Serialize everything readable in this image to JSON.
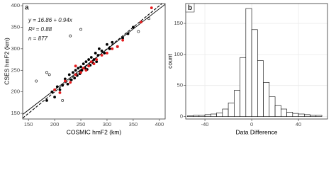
{
  "chart_data": [
    {
      "type": "scatter",
      "panel_label": "a",
      "x_label": "COSMIC hmF2 (km)",
      "y_label": "CSES hmF2 (km)",
      "annotations": [
        "y = 16.86 + 0.94x",
        "R² = 0.88",
        "n = 877"
      ],
      "fit": {
        "intercept": 16.86,
        "slope": 0.94
      },
      "xlim": [
        139,
        411
      ],
      "ylim": [
        137,
        405
      ],
      "xticks": [
        150,
        200,
        250,
        300,
        350,
        400
      ],
      "yticks": [
        150,
        200,
        250,
        300,
        350,
        400
      ],
      "grid": false,
      "series": [
        {
          "color": "#000000",
          "fill": "#000000",
          "x": [
            185,
            195,
            200,
            205,
            210,
            215,
            220,
            225,
            228,
            232,
            235,
            238,
            240,
            243,
            245,
            248,
            250,
            252,
            255,
            258,
            260,
            262,
            265,
            268,
            270,
            273,
            275,
            278,
            280,
            283,
            285,
            290,
            295,
            300,
            305,
            310,
            320,
            330,
            340,
            350
          ],
          "y": [
            180,
            200,
            188,
            212,
            205,
            215,
            230,
            218,
            240,
            228,
            245,
            232,
            250,
            238,
            255,
            242,
            258,
            250,
            265,
            255,
            270,
            252,
            275,
            262,
            280,
            268,
            275,
            290,
            270,
            285,
            300,
            295,
            290,
            310,
            300,
            315,
            305,
            325,
            335,
            350
          ]
        },
        {
          "color": "#e41a1c",
          "fill": "#e41a1c",
          "x": [
            200,
            210,
            220,
            230,
            240,
            250,
            255,
            260,
            265,
            270,
            275,
            280,
            290,
            300,
            310,
            320,
            330,
            365,
            385,
            240
          ],
          "y": [
            205,
            198,
            225,
            222,
            240,
            245,
            255,
            250,
            260,
            270,
            265,
            275,
            285,
            290,
            300,
            305,
            320,
            362,
            395,
            260
          ]
        },
        {
          "color": "#000000",
          "fill": "none",
          "x": [
            165,
            185,
            190,
            230,
            250,
            360,
            380,
            215
          ],
          "y": [
            225,
            245,
            240,
            330,
            345,
            340,
            370,
            180
          ]
        }
      ]
    },
    {
      "type": "histogram",
      "panel_label": "b",
      "x_label": "Data Difference",
      "y_label": "count",
      "bins": [
        -55,
        -50,
        -45,
        -40,
        -35,
        -30,
        -25,
        -20,
        -15,
        -10,
        -5,
        0,
        5,
        10,
        15,
        20,
        25,
        30,
        35,
        40,
        45,
        50,
        55,
        60
      ],
      "counts": [
        1,
        2,
        2,
        3,
        4,
        6,
        12,
        22,
        42,
        95,
        174,
        140,
        90,
        55,
        32,
        18,
        12,
        7,
        5,
        4,
        3,
        2,
        2
      ],
      "color": "#000000",
      "fill": "#ffffff",
      "xlim": [
        -56.4,
        64.8
      ],
      "ylim": [
        -4,
        182
      ],
      "xticks": [
        -40,
        0,
        40
      ],
      "yticks": [
        0,
        50,
        100,
        150
      ],
      "grid": true
    }
  ]
}
